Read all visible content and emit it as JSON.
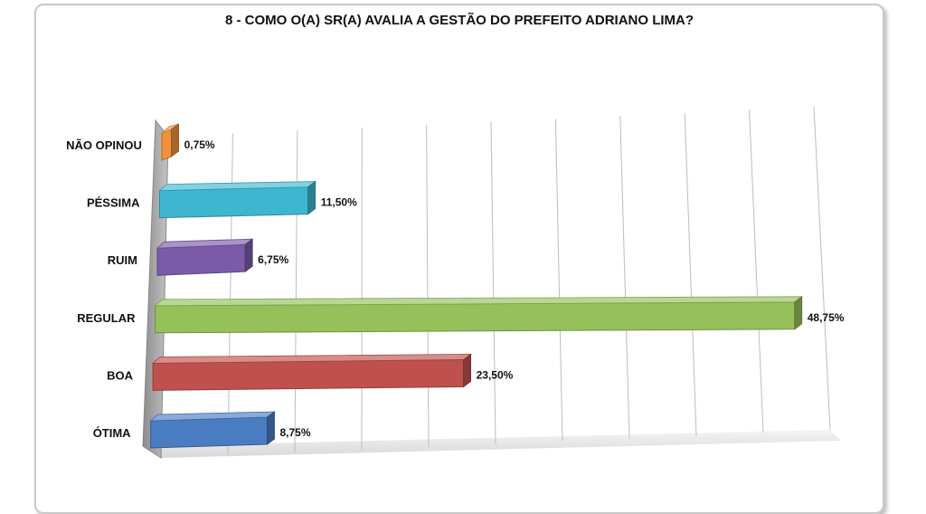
{
  "chart_data": {
    "type": "bar",
    "orientation": "horizontal",
    "title": "8 - COMO O(A) SR(A) AVALIA A GESTÃO DO PREFEITO ADRIANO LIMA?",
    "categories": [
      "NÃO OPINOU",
      "PÉSSIMA",
      "RUIM",
      "REGULAR",
      "BOA",
      "ÓTIMA"
    ],
    "values": [
      0.75,
      11.5,
      6.75,
      48.75,
      23.5,
      8.75
    ],
    "value_labels": [
      "0,75%",
      "11,50%",
      "6,75%",
      "48,75%",
      "23,50%",
      "8,75%"
    ],
    "colors": [
      "#f0923a",
      "#3fb6cf",
      "#7b5ba8",
      "#95c05a",
      "#c0504d",
      "#4a7cc2"
    ],
    "xlim": [
      0,
      50
    ],
    "grid": true,
    "legend": "none"
  }
}
